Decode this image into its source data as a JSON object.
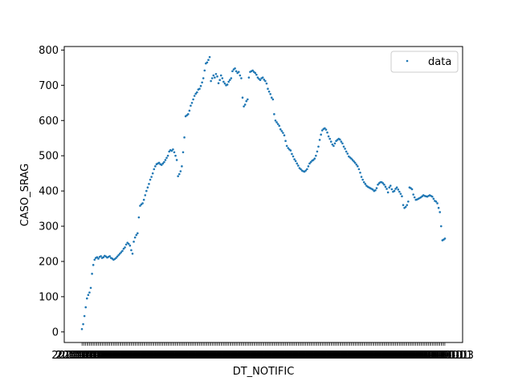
{
  "chart_data": {
    "type": "scatter",
    "title": "",
    "xlabel": "DT_NOTIFIC",
    "ylabel": "CASO_SRAG",
    "ylim": [
      -30,
      810
    ],
    "yticks": [
      0,
      100,
      200,
      300,
      400,
      500,
      600,
      700,
      800
    ],
    "grid": false,
    "legend": {
      "placement": "top-right",
      "entries": [
        "data"
      ]
    },
    "x_ticks_note": "x tick labels are dense overlapping date strings; one tick per point",
    "x_first_label_fragment": "2",
    "x_last_label_fragment": "3",
    "point_color": "#1f77b4",
    "series": [
      {
        "name": "data",
        "y": [
          8,
          22,
          45,
          70,
          95,
          105,
          112,
          125,
          165,
          190,
          205,
          210,
          212,
          208,
          213,
          215,
          210,
          212,
          216,
          214,
          211,
          213,
          215,
          210,
          208,
          205,
          207,
          210,
          214,
          218,
          222,
          226,
          230,
          236,
          240,
          248,
          253,
          250,
          245,
          232,
          222,
          256,
          268,
          275,
          280,
          325,
          358,
          362,
          365,
          375,
          388,
          400,
          410,
          420,
          432,
          440,
          450,
          462,
          470,
          476,
          478,
          480,
          476,
          474,
          478,
          482,
          488,
          494,
          500,
          512,
          516,
          514,
          518,
          510,
          500,
          488,
          442,
          448,
          456,
          470,
          510,
          552,
          612,
          615,
          618,
          628,
          642,
          650,
          660,
          670,
          676,
          680,
          688,
          690,
          698,
          708,
          720,
          742,
          762,
          765,
          772,
          780,
          712,
          720,
          728,
          722,
          732,
          725,
          706,
          715,
          728,
          720,
          710,
          705,
          700,
          702,
          710,
          715,
          720,
          740,
          745,
          748,
          740,
          735,
          738,
          728,
          720,
          665,
          640,
          645,
          655,
          660,
          722,
          738,
          740,
          742,
          738,
          735,
          730,
          722,
          718,
          715,
          720,
          722,
          716,
          712,
          705,
          690,
          682,
          675,
          665,
          660,
          618,
          600,
          595,
          590,
          585,
          575,
          570,
          565,
          558,
          542,
          528,
          522,
          518,
          515,
          505,
          498,
          490,
          485,
          478,
          472,
          465,
          462,
          458,
          456,
          455,
          458,
          462,
          470,
          478,
          482,
          486,
          488,
          492,
          500,
          512,
          526,
          545,
          560,
          572,
          576,
          578,
          574,
          566,
          555,
          548,
          540,
          532,
          528,
          535,
          542,
          545,
          548,
          546,
          540,
          535,
          526,
          520,
          512,
          506,
          498,
          495,
          492,
          488,
          484,
          480,
          475,
          470,
          462,
          452,
          440,
          432,
          425,
          420,
          415,
          412,
          410,
          408,
          406,
          404,
          400,
          402,
          408,
          418,
          422,
          425,
          425,
          422,
          418,
          412,
          406,
          396,
          410,
          415,
          405,
          398,
          400,
          406,
          410,
          404,
          398,
          392,
          385,
          360,
          352,
          355,
          360,
          370,
          410,
          408,
          405,
          390,
          382,
          375,
          376,
          378,
          380,
          382,
          385,
          388,
          386,
          385,
          384,
          386,
          388,
          386,
          384,
          378,
          372,
          370,
          365,
          352,
          340,
          300,
          260,
          262,
          265
        ]
      }
    ]
  }
}
